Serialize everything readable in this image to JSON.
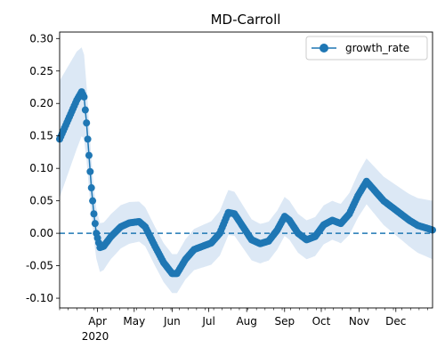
{
  "chart_data": {
    "type": "line",
    "title": "MD-Carroll",
    "xlabel": "",
    "ylabel": "",
    "x_start": "2020-03-01",
    "x_end": "2020-12-31",
    "ylim": [
      -0.115,
      0.31
    ],
    "y_ticks": [
      -0.1,
      -0.05,
      0.0,
      0.05,
      0.1,
      0.15,
      0.2,
      0.25,
      0.3
    ],
    "y_tick_labels": [
      "-0.10",
      "-0.05",
      "0.00",
      "0.05",
      "0.10",
      "0.15",
      "0.20",
      "0.25",
      "0.30"
    ],
    "x_month_ticks": [
      "2020-04-01",
      "2020-05-01",
      "2020-06-01",
      "2020-07-01",
      "2020-08-01",
      "2020-09-01",
      "2020-10-01",
      "2020-11-01",
      "2020-12-01"
    ],
    "x_month_labels": [
      "Apr",
      "May",
      "Jun",
      "Jul",
      "Aug",
      "Sep",
      "Oct",
      "Nov",
      "Dec"
    ],
    "x_year_label": "2020",
    "legend": {
      "label": "growth_rate",
      "position": "upper right"
    },
    "reference_line": {
      "y": 0.0,
      "style": "dashed"
    },
    "colors": {
      "line": "#1f77b4",
      "band": "#dce8f5"
    },
    "series": [
      {
        "name": "growth_rate",
        "anchors": [
          [
            "2020-03-01",
            0.145
          ],
          [
            "2020-03-08",
            0.175
          ],
          [
            "2020-03-15",
            0.205
          ],
          [
            "2020-03-19",
            0.218
          ],
          [
            "2020-03-21",
            0.21
          ],
          [
            "2020-03-23",
            0.17
          ],
          [
            "2020-03-25",
            0.12
          ],
          [
            "2020-03-27",
            0.07
          ],
          [
            "2020-03-29",
            0.03
          ],
          [
            "2020-03-31",
            0.0
          ],
          [
            "2020-04-03",
            -0.022
          ],
          [
            "2020-04-06",
            -0.02
          ],
          [
            "2020-04-12",
            -0.005
          ],
          [
            "2020-04-20",
            0.01
          ],
          [
            "2020-04-27",
            0.016
          ],
          [
            "2020-05-05",
            0.018
          ],
          [
            "2020-05-10",
            0.01
          ],
          [
            "2020-05-18",
            -0.02
          ],
          [
            "2020-05-25",
            -0.045
          ],
          [
            "2020-06-01",
            -0.062
          ],
          [
            "2020-06-05",
            -0.062
          ],
          [
            "2020-06-12",
            -0.04
          ],
          [
            "2020-06-19",
            -0.025
          ],
          [
            "2020-06-26",
            -0.02
          ],
          [
            "2020-07-03",
            -0.015
          ],
          [
            "2020-07-10",
            0.0
          ],
          [
            "2020-07-17",
            0.032
          ],
          [
            "2020-07-22",
            0.03
          ],
          [
            "2020-07-29",
            0.01
          ],
          [
            "2020-08-05",
            -0.01
          ],
          [
            "2020-08-12",
            -0.016
          ],
          [
            "2020-08-19",
            -0.012
          ],
          [
            "2020-08-26",
            0.005
          ],
          [
            "2020-09-01",
            0.026
          ],
          [
            "2020-09-05",
            0.02
          ],
          [
            "2020-09-12",
            0.0
          ],
          [
            "2020-09-19",
            -0.01
          ],
          [
            "2020-09-26",
            -0.005
          ],
          [
            "2020-10-03",
            0.013
          ],
          [
            "2020-10-10",
            0.02
          ],
          [
            "2020-10-17",
            0.015
          ],
          [
            "2020-10-24",
            0.03
          ],
          [
            "2020-10-31",
            0.058
          ],
          [
            "2020-11-07",
            0.08
          ],
          [
            "2020-11-14",
            0.065
          ],
          [
            "2020-11-21",
            0.05
          ],
          [
            "2020-11-28",
            0.04
          ],
          [
            "2020-12-05",
            0.03
          ],
          [
            "2020-12-12",
            0.02
          ],
          [
            "2020-12-19",
            0.012
          ],
          [
            "2020-12-26",
            0.008
          ],
          [
            "2020-12-31",
            0.005
          ]
        ],
        "band_halfwidth_anchors": [
          [
            "2020-03-01",
            0.09
          ],
          [
            "2020-03-15",
            0.075
          ],
          [
            "2020-03-21",
            0.065
          ],
          [
            "2020-03-28",
            0.04
          ],
          [
            "2020-04-10",
            0.035
          ],
          [
            "2020-05-10",
            0.03
          ],
          [
            "2020-06-05",
            0.03
          ],
          [
            "2020-07-15",
            0.035
          ],
          [
            "2020-08-15",
            0.03
          ],
          [
            "2020-09-15",
            0.03
          ],
          [
            "2020-10-15",
            0.03
          ],
          [
            "2020-11-05",
            0.035
          ],
          [
            "2020-12-10",
            0.04
          ],
          [
            "2020-12-31",
            0.045
          ]
        ]
      }
    ]
  }
}
